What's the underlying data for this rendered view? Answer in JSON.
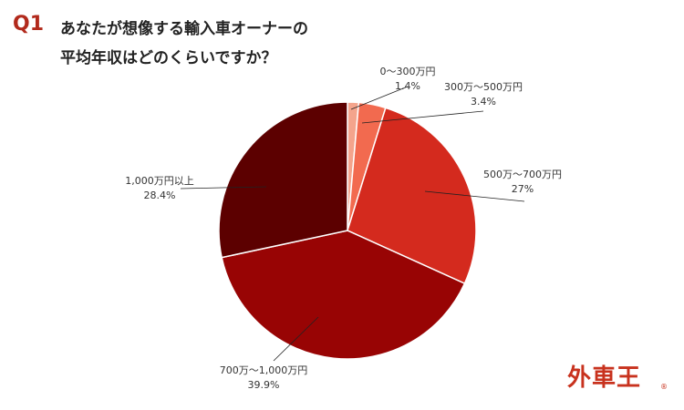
{
  "header": {
    "q_number": "Q1",
    "title_line1": "あなたが想像する輸入車オーナーの",
    "title_line2": "平均年収はどのくらいですか？"
  },
  "chart_data": {
    "type": "pie",
    "title": "あなたが想像する輸入車オーナーの平均年収はどのくらいですか？",
    "start_angle_deg": 0,
    "direction": "clockwise",
    "slices": [
      {
        "label": "0〜300万円",
        "value": 1.4,
        "value_label": "1.4%",
        "color": "#f4a48c"
      },
      {
        "label": "300万〜500万円",
        "value": 3.4,
        "value_label": "3.4%",
        "color": "#f26a4f"
      },
      {
        "label": "500万〜700万円",
        "value": 27,
        "value_label": "27%",
        "color": "#d42a1e"
      },
      {
        "label": "700万〜1,000万円",
        "value": 39.9,
        "value_label": "39.9%",
        "color": "#980404"
      },
      {
        "label": "1,000万円以上",
        "value": 28.4,
        "value_label": "28.4%",
        "color": "#5c0000"
      }
    ]
  },
  "logo": {
    "text": "外車王",
    "mark": "®"
  }
}
